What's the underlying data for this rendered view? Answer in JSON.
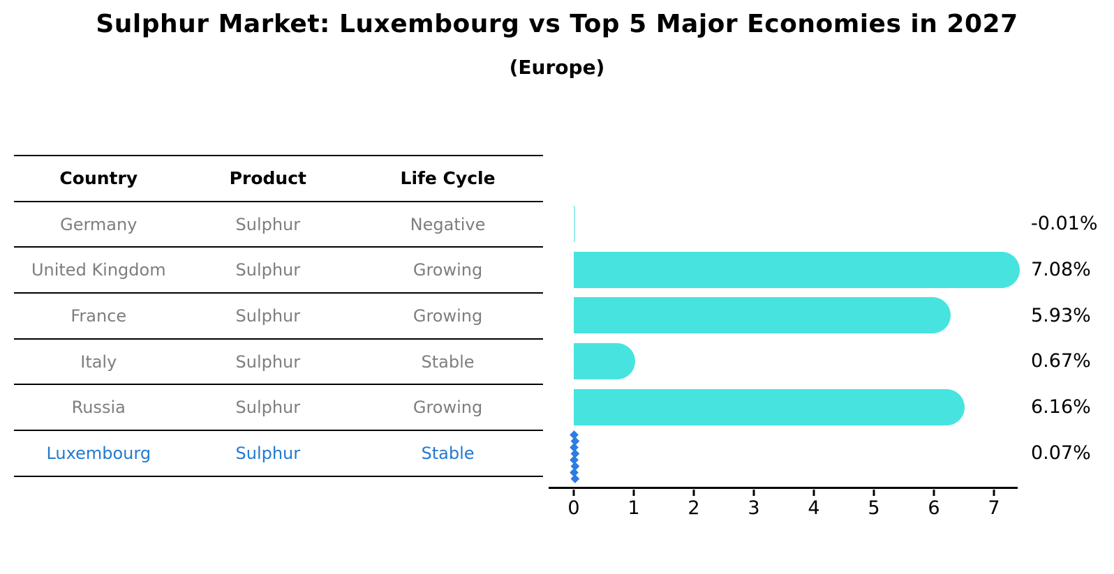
{
  "title": "Sulphur Market: Luxembourg vs Top 5 Major Economies in 2027",
  "subtitle": "(Europe)",
  "table": {
    "columns": [
      "Country",
      "Product",
      "Life Cycle"
    ],
    "rows": [
      {
        "country": "Germany",
        "product": "Sulphur",
        "life_cycle": "Negative",
        "highlight": false
      },
      {
        "country": "United Kingdom",
        "product": "Sulphur",
        "life_cycle": "Growing",
        "highlight": false
      },
      {
        "country": "France",
        "product": "Sulphur",
        "life_cycle": "Growing",
        "highlight": false
      },
      {
        "country": "Italy",
        "product": "Sulphur",
        "life_cycle": "Stable",
        "highlight": false
      },
      {
        "country": "Russia",
        "product": "Sulphur",
        "life_cycle": "Growing",
        "highlight": false
      },
      {
        "country": "Luxembourg",
        "product": "Sulphur",
        "life_cycle": "Stable",
        "highlight": true
      }
    ]
  },
  "chart_data": {
    "type": "bar",
    "orientation": "horizontal",
    "title": "Sulphur Market: Luxembourg vs Top 5 Major Economies in 2027 (Europe)",
    "categories": [
      "Germany",
      "United Kingdom",
      "France",
      "Italy",
      "Russia",
      "Luxembourg"
    ],
    "values": [
      -0.01,
      7.08,
      5.93,
      0.67,
      6.16,
      0.07
    ],
    "labels": [
      "-0.01%",
      "7.08%",
      "5.93%",
      "0.67%",
      "6.16%",
      "0.07%"
    ],
    "value_suffix": "%",
    "xlim": [
      0,
      7.8
    ],
    "x_ticks": [
      0,
      1,
      2,
      3,
      4,
      5,
      6,
      7
    ],
    "grid": false,
    "legend": "none",
    "bar_color": "#47e4df",
    "highlight_color": "#2b7de0",
    "highlight_text_color": "#2379d0",
    "highlight_index": 5,
    "highlight_marker": "diamond-dotted-line"
  }
}
